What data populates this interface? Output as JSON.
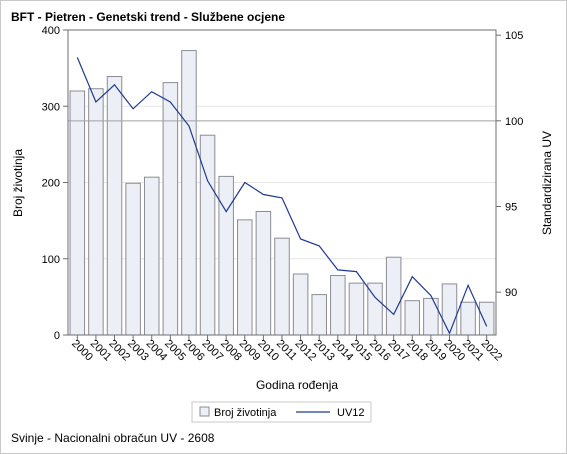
{
  "chart_data": {
    "type": "bar",
    "title": "BFT - Pietren - Genetski trend - Službene ocjene",
    "xlabel": "Godina rođenja",
    "ylabel": "Broj životinja",
    "y2label": "Standardizirana UV",
    "ylim": [
      0,
      400
    ],
    "yticks": [
      0,
      100,
      200,
      300,
      400
    ],
    "y2lim": [
      87.5,
      105.3
    ],
    "y2ticks": [
      90,
      95,
      100,
      105
    ],
    "y2_reference": 100,
    "categories": [
      "2000",
      "2001",
      "2002",
      "2003",
      "2004",
      "2005",
      "2006",
      "2007",
      "2008",
      "2009",
      "2010",
      "2011",
      "2012",
      "2013",
      "2014",
      "2015",
      "2016",
      "2017",
      "2018",
      "2019",
      "2020",
      "2021",
      "2022"
    ],
    "series": [
      {
        "name": "Broj životinja",
        "kind": "bar",
        "axis": "left",
        "values": [
          320,
          323,
          339,
          199,
          207,
          331,
          373,
          262,
          208,
          151,
          162,
          127,
          80,
          53,
          78,
          68,
          68,
          102,
          45,
          48,
          67,
          43,
          43
        ]
      },
      {
        "name": "UV12",
        "kind": "line",
        "axis": "right",
        "values": [
          103.7,
          101.1,
          102.1,
          100.7,
          101.7,
          101.1,
          99.7,
          96.5,
          94.7,
          96.4,
          95.7,
          95.5,
          93.1,
          92.7,
          91.3,
          91.2,
          89.7,
          88.7,
          90.9,
          89.8,
          87.6,
          90.4,
          88.0
        ]
      }
    ],
    "legend_position": "bottom",
    "grid": true,
    "colors": {
      "bar_fill": "#eceff5",
      "bar_stroke": "#8c8c96",
      "line": "#1f3a93",
      "grid": "#e6e6e6",
      "reference": "#a0a0a0"
    }
  },
  "footnote": "Svinje - Nacionalni obračun UV - 2608"
}
